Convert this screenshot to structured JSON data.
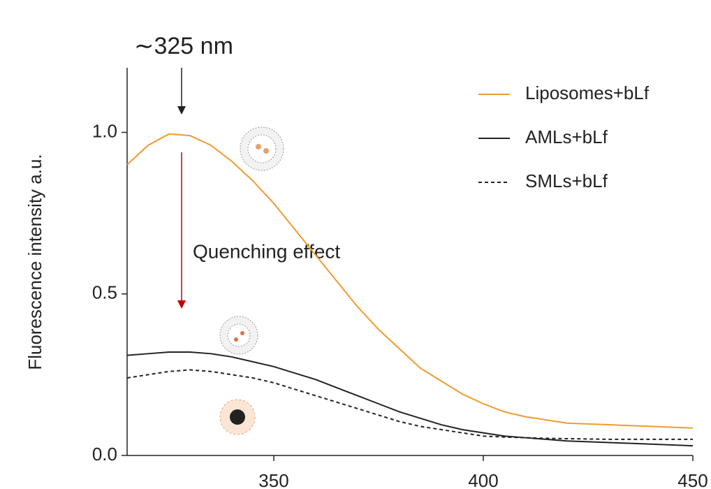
{
  "chart_data": {
    "type": "line",
    "ylabel": "Fluorescence intensity a.u.",
    "annotations": [
      "∼325 nm",
      "Quenching effect"
    ],
    "x": [
      315,
      320,
      325,
      330,
      335,
      340,
      345,
      350,
      355,
      360,
      365,
      370,
      375,
      380,
      385,
      390,
      395,
      400,
      405,
      410,
      415,
      420,
      430,
      440,
      450
    ],
    "series": [
      {
        "name": "Liposomes+bLf",
        "color": "#f39a2e",
        "linestyle": "solid",
        "values": [
          0.9,
          0.96,
          0.995,
          0.99,
          0.96,
          0.91,
          0.85,
          0.78,
          0.7,
          0.62,
          0.54,
          0.46,
          0.39,
          0.33,
          0.27,
          0.23,
          0.19,
          0.16,
          0.135,
          0.12,
          0.11,
          0.1,
          0.095,
          0.09,
          0.085
        ]
      },
      {
        "name": "AMLs+bLf",
        "color": "#222222",
        "linestyle": "solid",
        "values": [
          0.31,
          0.315,
          0.32,
          0.32,
          0.315,
          0.305,
          0.29,
          0.275,
          0.255,
          0.235,
          0.21,
          0.185,
          0.16,
          0.135,
          0.115,
          0.095,
          0.08,
          0.07,
          0.06,
          0.055,
          0.05,
          0.045,
          0.04,
          0.035,
          0.03
        ]
      },
      {
        "name": "SMLs+bLf",
        "color": "#222222",
        "linestyle": "dashed",
        "values": [
          0.24,
          0.25,
          0.26,
          0.265,
          0.26,
          0.25,
          0.24,
          0.225,
          0.205,
          0.185,
          0.165,
          0.145,
          0.125,
          0.105,
          0.09,
          0.08,
          0.07,
          0.06,
          0.057,
          0.055,
          0.053,
          0.052,
          0.05,
          0.05,
          0.05
        ]
      }
    ],
    "xlim": [
      315,
      450
    ],
    "xticks": [
      350,
      400,
      450
    ],
    "ylim": [
      0,
      1.2
    ],
    "yticks": [
      {
        "value": 0,
        "label": "0.0"
      },
      {
        "value": 0.5,
        "label": "0.5"
      },
      {
        "value": 1,
        "label": "1.0"
      }
    ],
    "grid": false
  }
}
